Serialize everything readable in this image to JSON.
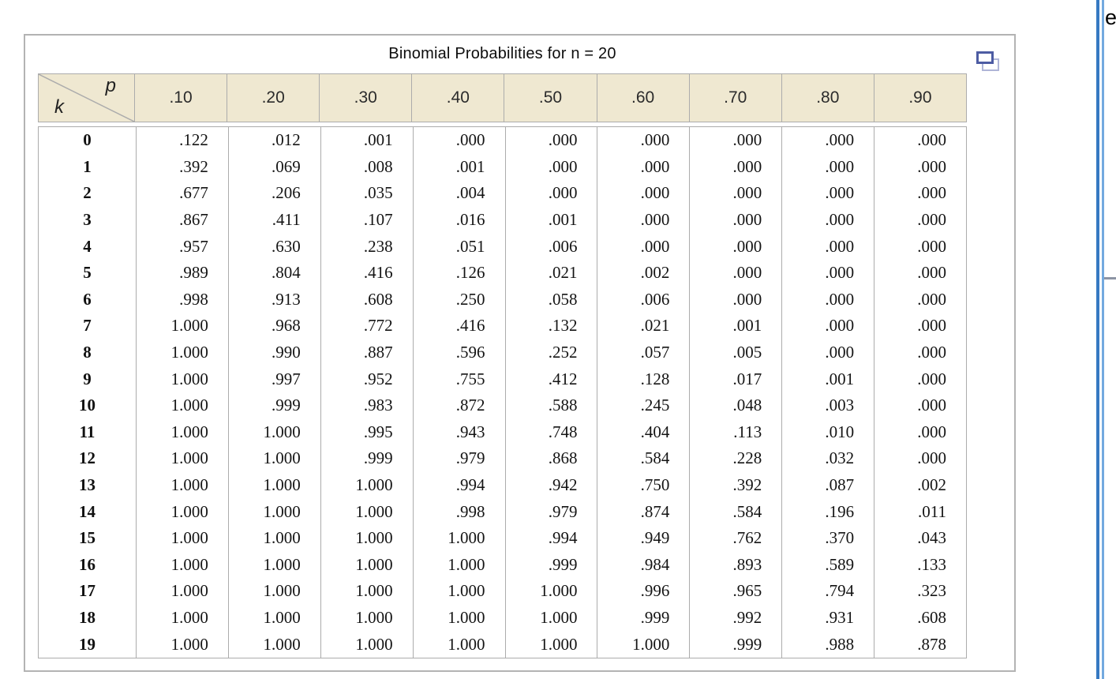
{
  "page": {
    "background": "#FFFFFF",
    "right_text_fragment": "e"
  },
  "panel": {
    "border_color": "#B3B3B3"
  },
  "colors": {
    "header_bg": "#EFE8D1",
    "grid_line": "#ACACAC",
    "icon_front_blue": "#4D5CA3",
    "icon_back_blue": "#AFB5D7",
    "divider_dark_blue": "#3679C2",
    "divider_light_blue": "#73A9DF",
    "right_rule_gray": "#8C94A4"
  },
  "icons": {
    "duplicate_window": "duplicate-window-icon"
  },
  "chart_data": {
    "type": "table",
    "title": "Binomial Probabilities for n = 20",
    "corner_labels": {
      "top_right": "p",
      "bottom_left": "k"
    },
    "column_headers": [
      ".10",
      ".20",
      ".30",
      ".40",
      ".50",
      ".60",
      ".70",
      ".80",
      ".90"
    ],
    "row_labels": [
      "0",
      "1",
      "2",
      "3",
      "4",
      "5",
      "6",
      "7",
      "8",
      "9",
      "10",
      "11",
      "12",
      "13",
      "14",
      "15",
      "16",
      "17",
      "18",
      "19"
    ],
    "rows": [
      [
        ".122",
        ".012",
        ".001",
        ".000",
        ".000",
        ".000",
        ".000",
        ".000",
        ".000"
      ],
      [
        ".392",
        ".069",
        ".008",
        ".001",
        ".000",
        ".000",
        ".000",
        ".000",
        ".000"
      ],
      [
        ".677",
        ".206",
        ".035",
        ".004",
        ".000",
        ".000",
        ".000",
        ".000",
        ".000"
      ],
      [
        ".867",
        ".411",
        ".107",
        ".016",
        ".001",
        ".000",
        ".000",
        ".000",
        ".000"
      ],
      [
        ".957",
        ".630",
        ".238",
        ".051",
        ".006",
        ".000",
        ".000",
        ".000",
        ".000"
      ],
      [
        ".989",
        ".804",
        ".416",
        ".126",
        ".021",
        ".002",
        ".000",
        ".000",
        ".000"
      ],
      [
        ".998",
        ".913",
        ".608",
        ".250",
        ".058",
        ".006",
        ".000",
        ".000",
        ".000"
      ],
      [
        "1.000",
        ".968",
        ".772",
        ".416",
        ".132",
        ".021",
        ".001",
        ".000",
        ".000"
      ],
      [
        "1.000",
        ".990",
        ".887",
        ".596",
        ".252",
        ".057",
        ".005",
        ".000",
        ".000"
      ],
      [
        "1.000",
        ".997",
        ".952",
        ".755",
        ".412",
        ".128",
        ".017",
        ".001",
        ".000"
      ],
      [
        "1.000",
        ".999",
        ".983",
        ".872",
        ".588",
        ".245",
        ".048",
        ".003",
        ".000"
      ],
      [
        "1.000",
        "1.000",
        ".995",
        ".943",
        ".748",
        ".404",
        ".113",
        ".010",
        ".000"
      ],
      [
        "1.000",
        "1.000",
        ".999",
        ".979",
        ".868",
        ".584",
        ".228",
        ".032",
        ".000"
      ],
      [
        "1.000",
        "1.000",
        "1.000",
        ".994",
        ".942",
        ".750",
        ".392",
        ".087",
        ".002"
      ],
      [
        "1.000",
        "1.000",
        "1.000",
        ".998",
        ".979",
        ".874",
        ".584",
        ".196",
        ".011"
      ],
      [
        "1.000",
        "1.000",
        "1.000",
        "1.000",
        ".994",
        ".949",
        ".762",
        ".370",
        ".043"
      ],
      [
        "1.000",
        "1.000",
        "1.000",
        "1.000",
        ".999",
        ".984",
        ".893",
        ".589",
        ".133"
      ],
      [
        "1.000",
        "1.000",
        "1.000",
        "1.000",
        "1.000",
        ".996",
        ".965",
        ".794",
        ".323"
      ],
      [
        "1.000",
        "1.000",
        "1.000",
        "1.000",
        "1.000",
        ".999",
        ".992",
        ".931",
        ".608"
      ],
      [
        "1.000",
        "1.000",
        "1.000",
        "1.000",
        "1.000",
        "1.000",
        ".999",
        ".988",
        ".878"
      ]
    ]
  }
}
